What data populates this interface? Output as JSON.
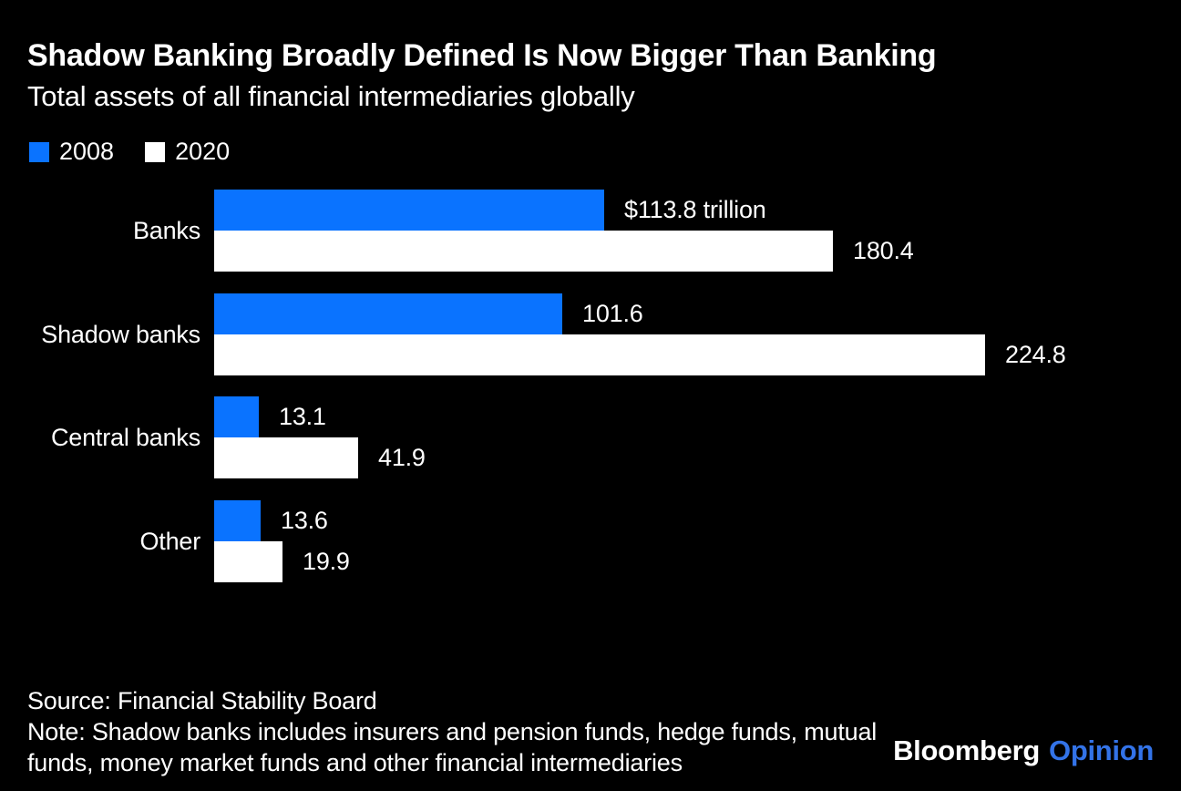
{
  "header": {
    "title": "Shadow Banking Broadly Defined Is Now Bigger Than Banking",
    "subtitle": "Total assets of all financial intermediaries globally"
  },
  "legend": {
    "items": [
      {
        "label": "2008",
        "color": "#0A73FF"
      },
      {
        "label": "2020",
        "color": "#FFFFFF"
      }
    ]
  },
  "chart_data": {
    "type": "bar",
    "orientation": "horizontal",
    "title": "Shadow Banking Broadly Defined Is Now Bigger Than Banking",
    "subtitle": "Total assets of all financial intermediaries globally",
    "unit": "trillion USD",
    "categories": [
      "Banks",
      "Shadow banks",
      "Central banks",
      "Other"
    ],
    "series": [
      {
        "name": "2008",
        "color": "#0A73FF",
        "values": [
          113.8,
          101.6,
          13.1,
          13.6
        ],
        "value_labels": [
          "$113.8 trillion",
          "101.6",
          "13.1",
          "13.6"
        ]
      },
      {
        "name": "2020",
        "color": "#FFFFFF",
        "values": [
          180.4,
          224.8,
          41.9,
          19.9
        ],
        "value_labels": [
          "180.4",
          "224.8",
          "41.9",
          "19.9"
        ]
      }
    ],
    "xlim": [
      0,
      224.8
    ],
    "grid": false,
    "legend_position": "top-left"
  },
  "footer": {
    "source": "Source: Financial Stability Board",
    "note_lines": [
      "Note: Shadow banks includes insurers and pension funds, hedge funds, mutual",
      "funds, money market funds and other financial intermediaries"
    ],
    "logo": {
      "brand": "Bloomberg",
      "product": "Opinion",
      "product_color": "#3373E8"
    }
  },
  "colors": {
    "background": "#000000",
    "text": "#FFFFFF",
    "accent_blue": "#0A73FF"
  }
}
